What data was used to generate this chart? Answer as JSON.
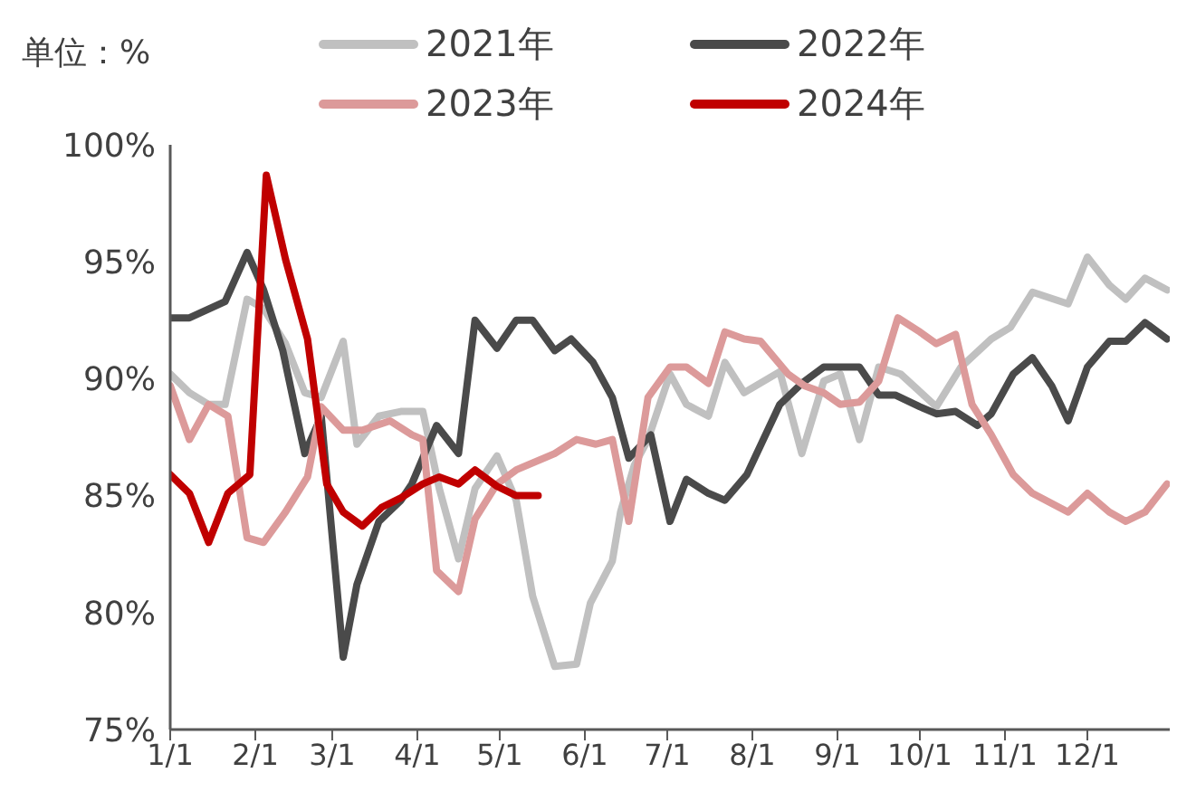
{
  "chart_data": {
    "type": "line",
    "ylabel": "单位：%",
    "legend": "top",
    "xlim": [
      "--01-01",
      "--12-31"
    ],
    "xticks": [
      {
        "value": "--01-01",
        "label": "1/1"
      },
      {
        "value": "--02-01",
        "label": "2/1"
      },
      {
        "value": "--03-01",
        "label": "3/1"
      },
      {
        "value": "--04-01",
        "label": "4/1"
      },
      {
        "value": "--05-01",
        "label": "5/1"
      },
      {
        "value": "--06-01",
        "label": "6/1"
      },
      {
        "value": "--07-01",
        "label": "7/1"
      },
      {
        "value": "--08-01",
        "label": "8/1"
      },
      {
        "value": "--09-01",
        "label": "9/1"
      },
      {
        "value": "--10-01",
        "label": "10/1"
      },
      {
        "value": "--11-01",
        "label": "11/1"
      },
      {
        "value": "--12-01",
        "label": "12/1"
      }
    ],
    "ylim": [
      75,
      100
    ],
    "yticks": [
      {
        "value": 75,
        "label": "75%"
      },
      {
        "value": 80,
        "label": "80%"
      },
      {
        "value": 85,
        "label": "85%"
      },
      {
        "value": 90,
        "label": "90%"
      },
      {
        "value": 95,
        "label": "95%"
      },
      {
        "value": 100,
        "label": "100%"
      }
    ],
    "series": [
      {
        "name": "2021年",
        "color": "#c0c0c0",
        "x": [
          "--01-01",
          "--01-08",
          "--01-15",
          "--01-21",
          "--01-29",
          "--02-04",
          "--02-12",
          "--02-19",
          "--02-25",
          "--03-05",
          "--03-10",
          "--03-18",
          "--03-26",
          "--04-03",
          "--04-09",
          "--04-16",
          "--04-22",
          "--04-30",
          "--05-07",
          "--05-13",
          "--05-21",
          "--05-29",
          "--06-03",
          "--06-11",
          "--06-14",
          "--06-19",
          "--06-24",
          "--07-02",
          "--07-08",
          "--07-16",
          "--07-22",
          "--07-29",
          "--08-11",
          "--08-19",
          "--08-27",
          "--09-02",
          "--09-09",
          "--09-16",
          "--09-24",
          "--10-07",
          "--10-16",
          "--10-27",
          "--11-03",
          "--11-11",
          "--11-24",
          "--12-01",
          "--12-09",
          "--12-15",
          "--12-22",
          "--12-30"
        ],
        "values": [
          90.2,
          89.4,
          88.9,
          88.9,
          93.4,
          93.0,
          91.5,
          89.4,
          89.2,
          91.6,
          87.2,
          88.4,
          88.6,
          88.6,
          85.3,
          82.3,
          85.3,
          86.7,
          84.8,
          80.7,
          77.7,
          77.8,
          80.4,
          82.2,
          84.3,
          86.3,
          87.4,
          90.2,
          88.9,
          88.4,
          90.7,
          89.4,
          90.3,
          86.8,
          89.9,
          90.2,
          87.4,
          90.5,
          90.2,
          88.8,
          90.5,
          91.7,
          92.2,
          93.7,
          93.2,
          95.2,
          94.0,
          93.4,
          94.3,
          93.8
        ]
      },
      {
        "name": "2022年",
        "color": "#4a4a4a",
        "x": [
          "--01-01",
          "--01-08",
          "--01-21",
          "--01-29",
          "--02-04",
          "--02-11",
          "--02-19",
          "--02-25",
          "--03-05",
          "--03-10",
          "--03-18",
          "--03-26",
          "--03-30",
          "--04-08",
          "--04-16",
          "--04-22",
          "--04-30",
          "--05-07",
          "--05-13",
          "--05-21",
          "--05-27",
          "--06-04",
          "--06-11",
          "--06-17",
          "--06-25",
          "--07-02",
          "--07-08",
          "--07-16",
          "--07-22",
          "--07-30",
          "--08-11",
          "--08-19",
          "--08-27",
          "--09-09",
          "--09-16",
          "--09-22",
          "--10-01",
          "--10-07",
          "--10-14",
          "--10-22",
          "--10-27",
          "--11-04",
          "--11-11",
          "--11-18",
          "--11-24",
          "--12-01",
          "--12-09",
          "--12-15",
          "--12-22",
          "--12-30"
        ],
        "values": [
          92.6,
          92.6,
          93.3,
          95.4,
          93.8,
          91.2,
          86.8,
          88.4,
          78.1,
          81.2,
          83.9,
          84.8,
          85.5,
          88.0,
          86.8,
          92.5,
          91.3,
          92.5,
          92.5,
          91.2,
          91.7,
          90.7,
          89.2,
          86.6,
          87.6,
          83.9,
          85.7,
          85.1,
          84.8,
          85.9,
          88.9,
          89.8,
          90.5,
          90.5,
          89.3,
          89.3,
          88.8,
          88.5,
          88.6,
          88.0,
          88.5,
          90.2,
          90.9,
          89.7,
          88.2,
          90.5,
          91.6,
          91.6,
          92.4,
          91.7
        ]
      },
      {
        "name": "2023年",
        "color": "#dc9a9a",
        "x": [
          "--01-01",
          "--01-08",
          "--01-15",
          "--01-22",
          "--01-29",
          "--02-04",
          "--02-12",
          "--02-20",
          "--02-25",
          "--03-05",
          "--03-12",
          "--03-22",
          "--03-30",
          "--04-03",
          "--04-08",
          "--04-16",
          "--04-22",
          "--04-30",
          "--05-07",
          "--05-21",
          "--05-29",
          "--06-05",
          "--06-11",
          "--06-17",
          "--06-24",
          "--07-02",
          "--07-08",
          "--07-16",
          "--07-22",
          "--07-29",
          "--08-04",
          "--08-14",
          "--08-20",
          "--08-27",
          "--09-02",
          "--09-09",
          "--09-16",
          "--09-23",
          "--10-01",
          "--10-07",
          "--10-14",
          "--10-20",
          "--10-27",
          "--11-04",
          "--11-11",
          "--11-24",
          "--12-01",
          "--12-09",
          "--12-15",
          "--12-22",
          "--12-30"
        ],
        "values": [
          89.7,
          87.4,
          88.9,
          88.4,
          83.2,
          83.0,
          84.3,
          85.8,
          88.8,
          87.8,
          87.8,
          88.2,
          87.6,
          87.4,
          81.8,
          80.9,
          84.0,
          85.5,
          86.1,
          86.8,
          87.4,
          87.2,
          87.4,
          83.9,
          89.2,
          90.5,
          90.5,
          89.8,
          92.0,
          91.7,
          91.6,
          90.2,
          89.7,
          89.4,
          88.9,
          89.0,
          89.9,
          92.6,
          92.0,
          91.5,
          91.9,
          88.9,
          87.6,
          85.9,
          85.1,
          84.3,
          85.1,
          84.3,
          83.9,
          84.3,
          85.5
        ]
      },
      {
        "name": "2024年",
        "color": "#c00000",
        "x": [
          "--01-01",
          "--01-08",
          "--01-15",
          "--01-22",
          "--01-30",
          "--02-05",
          "--02-12",
          "--02-20",
          "--02-27",
          "--03-05",
          "--03-12",
          "--03-19",
          "--03-26",
          "--04-03",
          "--04-09",
          "--04-16",
          "--04-22",
          "--04-30",
          "--05-07",
          "--05-15"
        ],
        "values": [
          85.9,
          85.1,
          83.0,
          85.1,
          85.9,
          98.7,
          95.1,
          91.7,
          85.5,
          84.3,
          83.7,
          84.5,
          84.9,
          85.5,
          85.8,
          85.5,
          86.1,
          85.4,
          85.0,
          85.0
        ]
      }
    ]
  }
}
